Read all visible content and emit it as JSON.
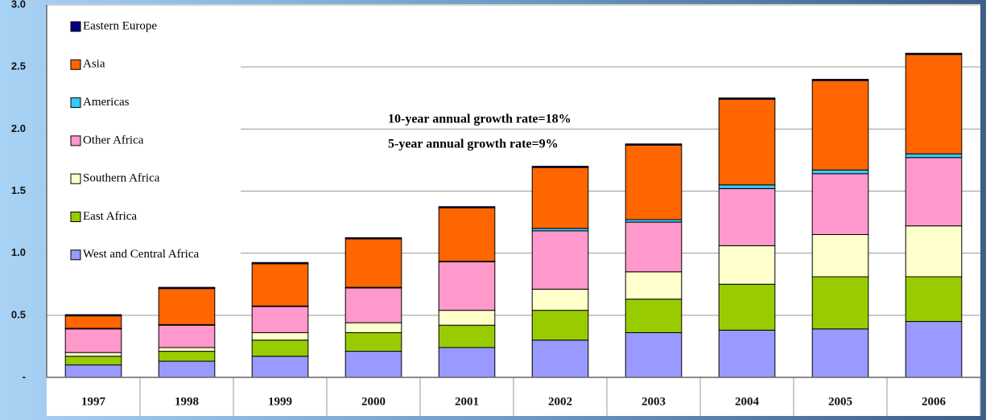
{
  "chart_data": {
    "type": "stacked_bar",
    "categories": [
      "1997",
      "1998",
      "1999",
      "2000",
      "2001",
      "2002",
      "2003",
      "2004",
      "2005",
      "2006"
    ],
    "series": [
      {
        "name": "West and Central Africa",
        "color": "#9999ff",
        "values": [
          0.1,
          0.13,
          0.17,
          0.21,
          0.24,
          0.3,
          0.36,
          0.38,
          0.39,
          0.45
        ]
      },
      {
        "name": "East Africa",
        "color": "#99cc00",
        "values": [
          0.07,
          0.08,
          0.13,
          0.15,
          0.18,
          0.24,
          0.27,
          0.37,
          0.42,
          0.36
        ]
      },
      {
        "name": "Southern Africa",
        "color": "#ffffcc",
        "values": [
          0.03,
          0.03,
          0.06,
          0.08,
          0.12,
          0.17,
          0.22,
          0.31,
          0.34,
          0.41
        ]
      },
      {
        "name": "Other Africa",
        "color": "#ff99cc",
        "values": [
          0.19,
          0.18,
          0.21,
          0.28,
          0.39,
          0.47,
          0.4,
          0.46,
          0.49,
          0.55
        ]
      },
      {
        "name": "Americas",
        "color": "#33ccff",
        "values": [
          0.005,
          0.005,
          0.005,
          0.005,
          0.005,
          0.02,
          0.02,
          0.03,
          0.03,
          0.03
        ]
      },
      {
        "name": "Asia",
        "color": "#ff6600",
        "values": [
          0.1,
          0.29,
          0.34,
          0.39,
          0.43,
          0.49,
          0.6,
          0.69,
          0.72,
          0.8
        ]
      },
      {
        "name": "Eastern Europe",
        "color": "#000080",
        "values": [
          0.01,
          0.01,
          0.01,
          0.01,
          0.01,
          0.01,
          0.01,
          0.01,
          0.01,
          0.01
        ]
      }
    ],
    "ylim": [
      0,
      3.0
    ],
    "yticks": [
      {
        "value": 0,
        "label": "-"
      },
      {
        "value": 0.5,
        "label": "0.5"
      },
      {
        "value": 1.0,
        "label": "1.0"
      },
      {
        "value": 1.5,
        "label": "1.5"
      },
      {
        "value": 2.0,
        "label": "2.0"
      },
      {
        "value": 2.5,
        "label": "2.5"
      },
      {
        "value": 3.0,
        "label": "3.0"
      }
    ],
    "grid": true,
    "legend": "left",
    "annotations": [
      "10-year annual growth rate=18%",
      "5-year annual growth rate=9%"
    ]
  }
}
